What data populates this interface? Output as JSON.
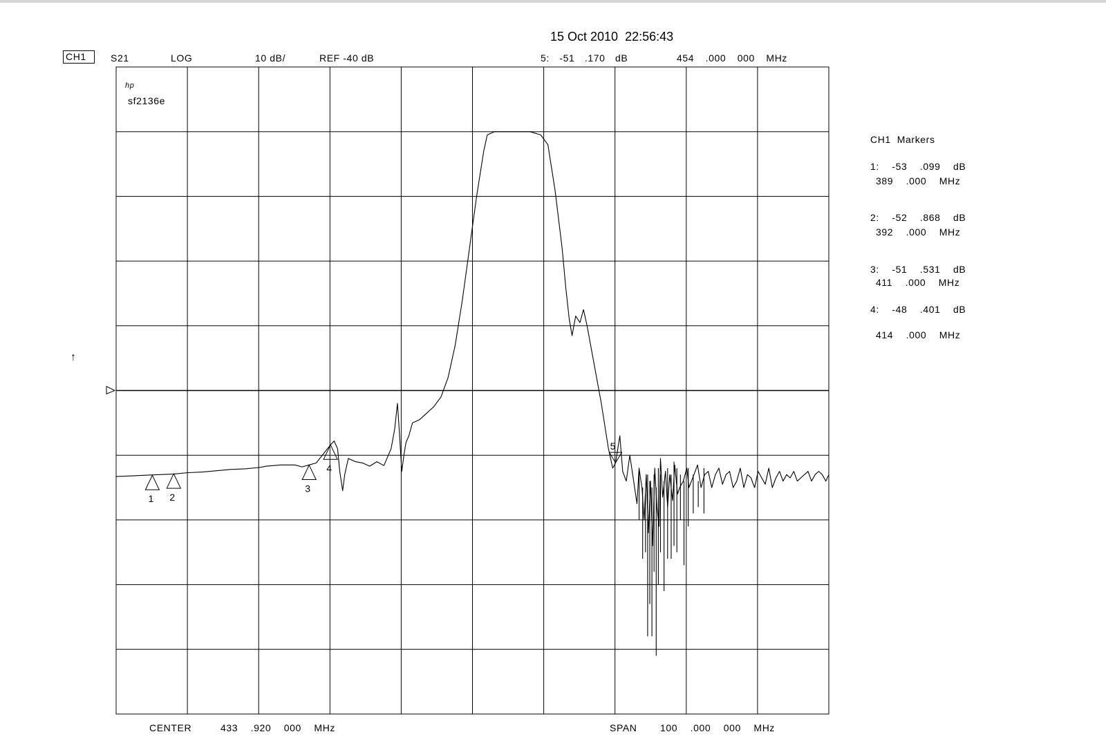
{
  "timestamp": "15 Oct 2010  22:56:43",
  "header": {
    "channel": "CH1",
    "param": "S21",
    "format": "LOG",
    "scale": "10 dB/",
    "ref": "REF -40 dB",
    "active_marker": "5: -51 .170 dB",
    "active_marker_freq": "454 .000 000 MHz"
  },
  "logo": "hp",
  "trace_title": "sf2136e",
  "markers_panel": {
    "title": "CH1  Markers",
    "items": [
      {
        "label": "1: -53 .099 dB",
        "freq": "389 .000 MHz"
      },
      {
        "label": "2: -52 .868 dB",
        "freq": "392 .000 MHz"
      },
      {
        "label": "3: -51 .531 dB",
        "freq": "411 .000 MHz"
      },
      {
        "label": "4: -48 .401 dB",
        "freq": "414 .000 MHz"
      }
    ]
  },
  "footer": {
    "center": "CENTER",
    "center_value": "433 .920 000 MHz",
    "span": "SPAN",
    "span_value": "100 .000 000 MHz"
  },
  "reference_arrow": "↑",
  "chart_data": {
    "type": "line",
    "xlabel": "",
    "ylabel": "",
    "x_unit": "MHz",
    "y_unit": "dB",
    "xlim": [
      383.92,
      483.92
    ],
    "ylim": [
      -90,
      10
    ],
    "ref_level": -40,
    "grid": true,
    "divisions": {
      "x": 10,
      "y": 10
    },
    "markers": [
      {
        "id": "1",
        "x": 389,
        "y": -53.099,
        "style": "up"
      },
      {
        "id": "2",
        "x": 392,
        "y": -52.868,
        "style": "up"
      },
      {
        "id": "3",
        "x": 411,
        "y": -51.531,
        "style": "up"
      },
      {
        "id": "4",
        "x": 414,
        "y": -48.401,
        "style": "up"
      },
      {
        "id": "5",
        "x": 454,
        "y": -51.17,
        "style": "down"
      }
    ],
    "series": [
      {
        "points": [
          [
            383.9,
            -53.3
          ],
          [
            386,
            -53.2
          ],
          [
            388,
            -53.1
          ],
          [
            390,
            -53
          ],
          [
            392,
            -52.9
          ],
          [
            394,
            -52.7
          ],
          [
            396,
            -52.6
          ],
          [
            398,
            -52.4
          ],
          [
            400,
            -52.2
          ],
          [
            402,
            -52.1
          ],
          [
            404,
            -51.9
          ],
          [
            405,
            -51.7
          ],
          [
            407,
            -51.5
          ],
          [
            409,
            -51.5
          ],
          [
            410,
            -51.8
          ],
          [
            411,
            -51.5
          ],
          [
            412,
            -51.2
          ],
          [
            413,
            -49.8
          ],
          [
            414,
            -48.4
          ],
          [
            414.5,
            -47.8
          ],
          [
            415,
            -49
          ],
          [
            415.3,
            -52.5
          ],
          [
            415.7,
            -55.5
          ],
          [
            416,
            -53
          ],
          [
            416.5,
            -50.5
          ],
          [
            417.5,
            -51
          ],
          [
            418.5,
            -51.2
          ],
          [
            419.5,
            -51.7
          ],
          [
            420.5,
            -51
          ],
          [
            421.5,
            -51.6
          ],
          [
            422.5,
            -49
          ],
          [
            423,
            -46
          ],
          [
            423.4,
            -42
          ],
          [
            423.7,
            -47
          ],
          [
            424,
            -52.5
          ],
          [
            424.3,
            -50
          ],
          [
            424.6,
            -48
          ],
          [
            425,
            -47
          ],
          [
            425.5,
            -45
          ],
          [
            426.5,
            -44.5
          ],
          [
            427.5,
            -43.5
          ],
          [
            428.5,
            -42.5
          ],
          [
            429.5,
            -41
          ],
          [
            430.5,
            -38
          ],
          [
            431.5,
            -33
          ],
          [
            432.5,
            -26
          ],
          [
            433.5,
            -18
          ],
          [
            434.5,
            -10
          ],
          [
            435.5,
            -3
          ],
          [
            436,
            -0.5
          ],
          [
            437,
            0
          ],
          [
            438,
            0
          ],
          [
            440,
            0
          ],
          [
            442,
            0
          ],
          [
            443.5,
            -0.5
          ],
          [
            444.5,
            -2
          ],
          [
            445.5,
            -9
          ],
          [
            446.5,
            -18
          ],
          [
            447,
            -24
          ],
          [
            447.5,
            -29
          ],
          [
            447.9,
            -31.5
          ],
          [
            448.4,
            -28.5
          ],
          [
            449,
            -29.5
          ],
          [
            449.5,
            -27.5
          ],
          [
            450,
            -30
          ],
          [
            451,
            -36
          ],
          [
            452,
            -42
          ],
          [
            453,
            -49
          ],
          [
            453.6,
            -52
          ],
          [
            454,
            -51.2
          ],
          [
            454.6,
            -47
          ],
          [
            455,
            -52.5
          ],
          [
            455.5,
            -54
          ],
          [
            456,
            -50
          ],
          [
            456.4,
            -53
          ],
          [
            457,
            -57.5
          ],
          [
            457.3,
            -52
          ],
          [
            457.7,
            -55
          ],
          [
            458,
            -60
          ],
          [
            458.3,
            -53
          ],
          [
            458.6,
            -62
          ],
          [
            458.9,
            -54
          ],
          [
            459.2,
            -64
          ],
          [
            459.5,
            -52
          ],
          [
            459.8,
            -58
          ],
          [
            460.1,
            -61
          ],
          [
            460.3,
            -50.5
          ],
          [
            460.6,
            -56.5
          ],
          [
            461,
            -52.5
          ],
          [
            461.3,
            -58
          ],
          [
            461.6,
            -53
          ],
          [
            462,
            -57
          ],
          [
            462.3,
            -51.5
          ],
          [
            462.7,
            -56
          ],
          [
            463,
            -55
          ],
          [
            463.5,
            -54
          ],
          [
            464,
            -52
          ],
          [
            464.3,
            -55
          ],
          [
            465,
            -53
          ],
          [
            465.5,
            -51.5
          ],
          [
            466,
            -55
          ],
          [
            466.5,
            -53
          ],
          [
            467,
            -52.5
          ],
          [
            467.5,
            -55
          ],
          [
            468,
            -53
          ],
          [
            468.5,
            -52
          ],
          [
            469,
            -54.5
          ],
          [
            469.5,
            -53
          ],
          [
            470,
            -52.5
          ],
          [
            470.5,
            -55
          ],
          [
            471,
            -54
          ],
          [
            471.5,
            -52
          ],
          [
            472,
            -55
          ],
          [
            472.5,
            -53
          ],
          [
            473,
            -53.5
          ],
          [
            473.5,
            -55
          ],
          [
            474,
            -52.5
          ],
          [
            474.5,
            -53.5
          ],
          [
            475,
            -54.5
          ],
          [
            475.5,
            -52
          ],
          [
            476,
            -55
          ],
          [
            476.5,
            -53.5
          ],
          [
            477,
            -52.5
          ],
          [
            477.5,
            -54
          ],
          [
            478,
            -53
          ],
          [
            478.5,
            -53.5
          ],
          [
            479,
            -52.5
          ],
          [
            479.5,
            -54
          ],
          [
            480,
            -53.5
          ],
          [
            480.5,
            -53
          ],
          [
            481,
            -52.5
          ],
          [
            481.5,
            -54
          ],
          [
            482,
            -53
          ],
          [
            482.5,
            -52.5
          ],
          [
            483,
            -53
          ],
          [
            483.5,
            -54
          ],
          [
            483.92,
            -53
          ]
        ]
      }
    ],
    "spikes": [
      [
        457.3,
        -52,
        -60
      ],
      [
        457.8,
        -55,
        -66
      ],
      [
        458.2,
        -56,
        -65
      ],
      [
        458.5,
        -53,
        -78
      ],
      [
        458.8,
        -54,
        -73
      ],
      [
        459.1,
        -55,
        -78
      ],
      [
        459.4,
        -53,
        -68
      ],
      [
        459.7,
        -55,
        -81
      ],
      [
        460,
        -52,
        -70
      ],
      [
        460.3,
        -53,
        -65
      ],
      [
        460.8,
        -54,
        -71
      ],
      [
        461.3,
        -52,
        -66
      ],
      [
        461.8,
        -53,
        -66
      ],
      [
        462.2,
        -51,
        -64
      ],
      [
        462.6,
        -52,
        -65
      ],
      [
        463.1,
        -53,
        -60
      ],
      [
        463.6,
        -54,
        -67
      ],
      [
        464.2,
        -52,
        -61
      ],
      [
        464.9,
        -53,
        -59
      ],
      [
        465.6,
        -54,
        -58
      ],
      [
        466.4,
        -52,
        -59
      ]
    ]
  }
}
